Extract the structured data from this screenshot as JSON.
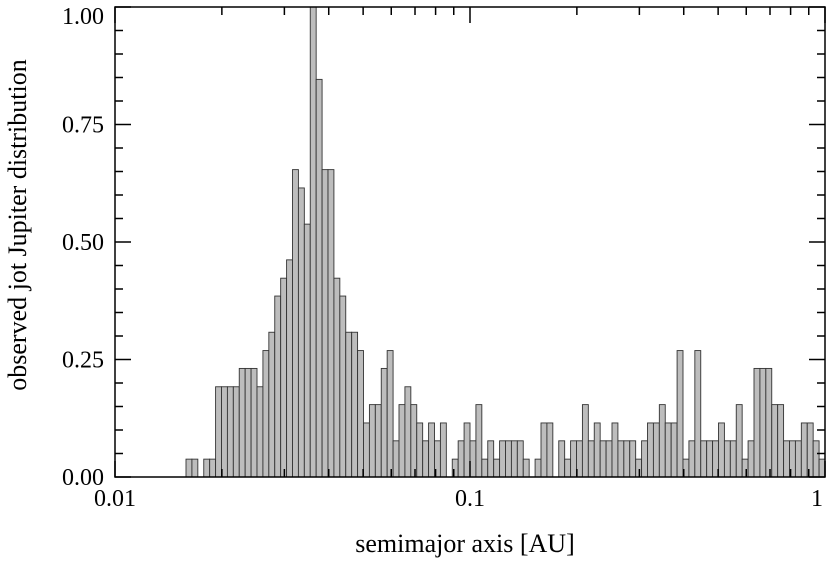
{
  "chart_data": {
    "type": "bar",
    "title": "",
    "xlabel": "semimajor axis [AU]",
    "ylabel": "observed jot Jupiter distribution",
    "x_scale": "log",
    "xlim": [
      0.01,
      1
    ],
    "ylim": [
      0,
      1
    ],
    "x_ticks": [
      {
        "value": 0.01,
        "label": "0.01"
      },
      {
        "value": 0.1,
        "label": "0.1"
      },
      {
        "value": 1,
        "label": "1"
      }
    ],
    "y_ticks": [
      {
        "value": 0,
        "label": "0.00"
      },
      {
        "value": 0.25,
        "label": "0.25"
      },
      {
        "value": 0.5,
        "label": "0.50"
      },
      {
        "value": 0.75,
        "label": "0.75"
      },
      {
        "value": 1,
        "label": "1.00"
      }
    ],
    "bar_color": "#bdbdbd",
    "bar_edge_color": "#333333",
    "grid": false,
    "bin_count": 120,
    "bin_range": [
      0.01,
      1
    ],
    "values": [
      0,
      0,
      0,
      0,
      0,
      0,
      0,
      0,
      0,
      0,
      0,
      0,
      0.038,
      0.038,
      0,
      0.038,
      0.038,
      0.192,
      0.192,
      0.192,
      0.192,
      0.231,
      0.231,
      0.231,
      0.192,
      0.269,
      0.308,
      0.385,
      0.423,
      0.462,
      0.654,
      0.615,
      0.538,
      1.0,
      0.846,
      0.654,
      0.654,
      0.423,
      0.385,
      0.308,
      0.308,
      0.269,
      0.115,
      0.154,
      0.154,
      0.231,
      0.269,
      0.077,
      0.154,
      0.192,
      0.154,
      0.115,
      0.077,
      0.115,
      0.077,
      0.115,
      0,
      0.038,
      0.077,
      0.115,
      0.077,
      0.154,
      0.038,
      0.077,
      0.038,
      0.077,
      0.077,
      0.077,
      0.077,
      0.038,
      0,
      0.038,
      0.115,
      0.115,
      0,
      0.077,
      0.038,
      0.077,
      0.077,
      0.154,
      0.077,
      0.115,
      0.077,
      0.077,
      0.115,
      0.077,
      0.077,
      0.077,
      0.038,
      0.077,
      0.115,
      0.115,
      0.154,
      0.115,
      0.115,
      0.269,
      0.038,
      0.077,
      0.269,
      0.077,
      0.077,
      0.077,
      0.115,
      0.077,
      0.077,
      0.154,
      0.038,
      0.077,
      0.231,
      0.231,
      0.231,
      0.154,
      0.154,
      0.077,
      0.077,
      0.077,
      0.115,
      0.115,
      0.077,
      0.038
    ]
  }
}
